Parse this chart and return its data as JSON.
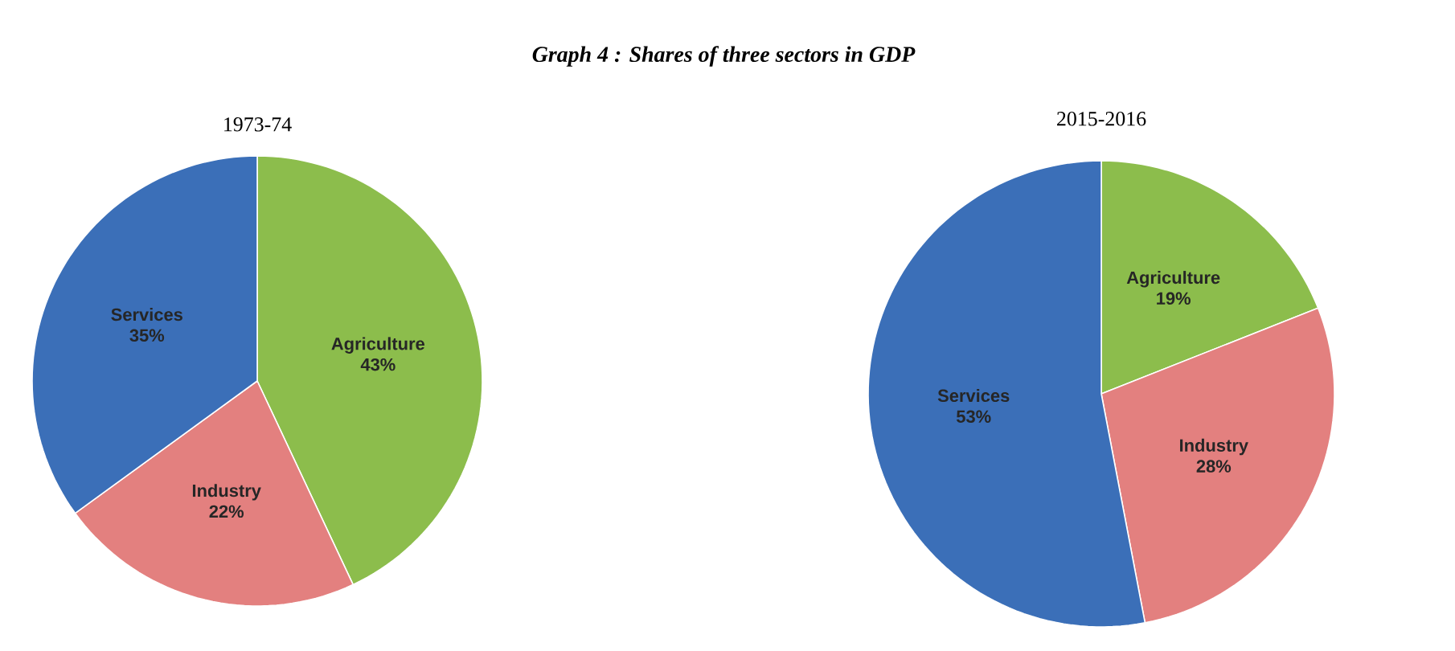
{
  "chart_data": [
    {
      "type": "pie",
      "title": "Graph 4 : Shares of three sectors in GDP",
      "subtitle": "1973-74",
      "categories": [
        "Agriculture",
        "Industry",
        "Services"
      ],
      "values": [
        43,
        22,
        35
      ],
      "value_labels": [
        "43%",
        "22%",
        "35%"
      ],
      "colors": [
        "#8cbd4c",
        "#e3807f",
        "#3b6fb8"
      ]
    },
    {
      "type": "pie",
      "title": "2015-2016",
      "categories": [
        "Agriculture",
        "Industry",
        "Services"
      ],
      "values": [
        19,
        28,
        53
      ],
      "value_labels": [
        "19%",
        "28%",
        "53%"
      ],
      "colors": [
        "#8cbd4c",
        "#e3807f",
        "#3b6fb8"
      ]
    }
  ]
}
